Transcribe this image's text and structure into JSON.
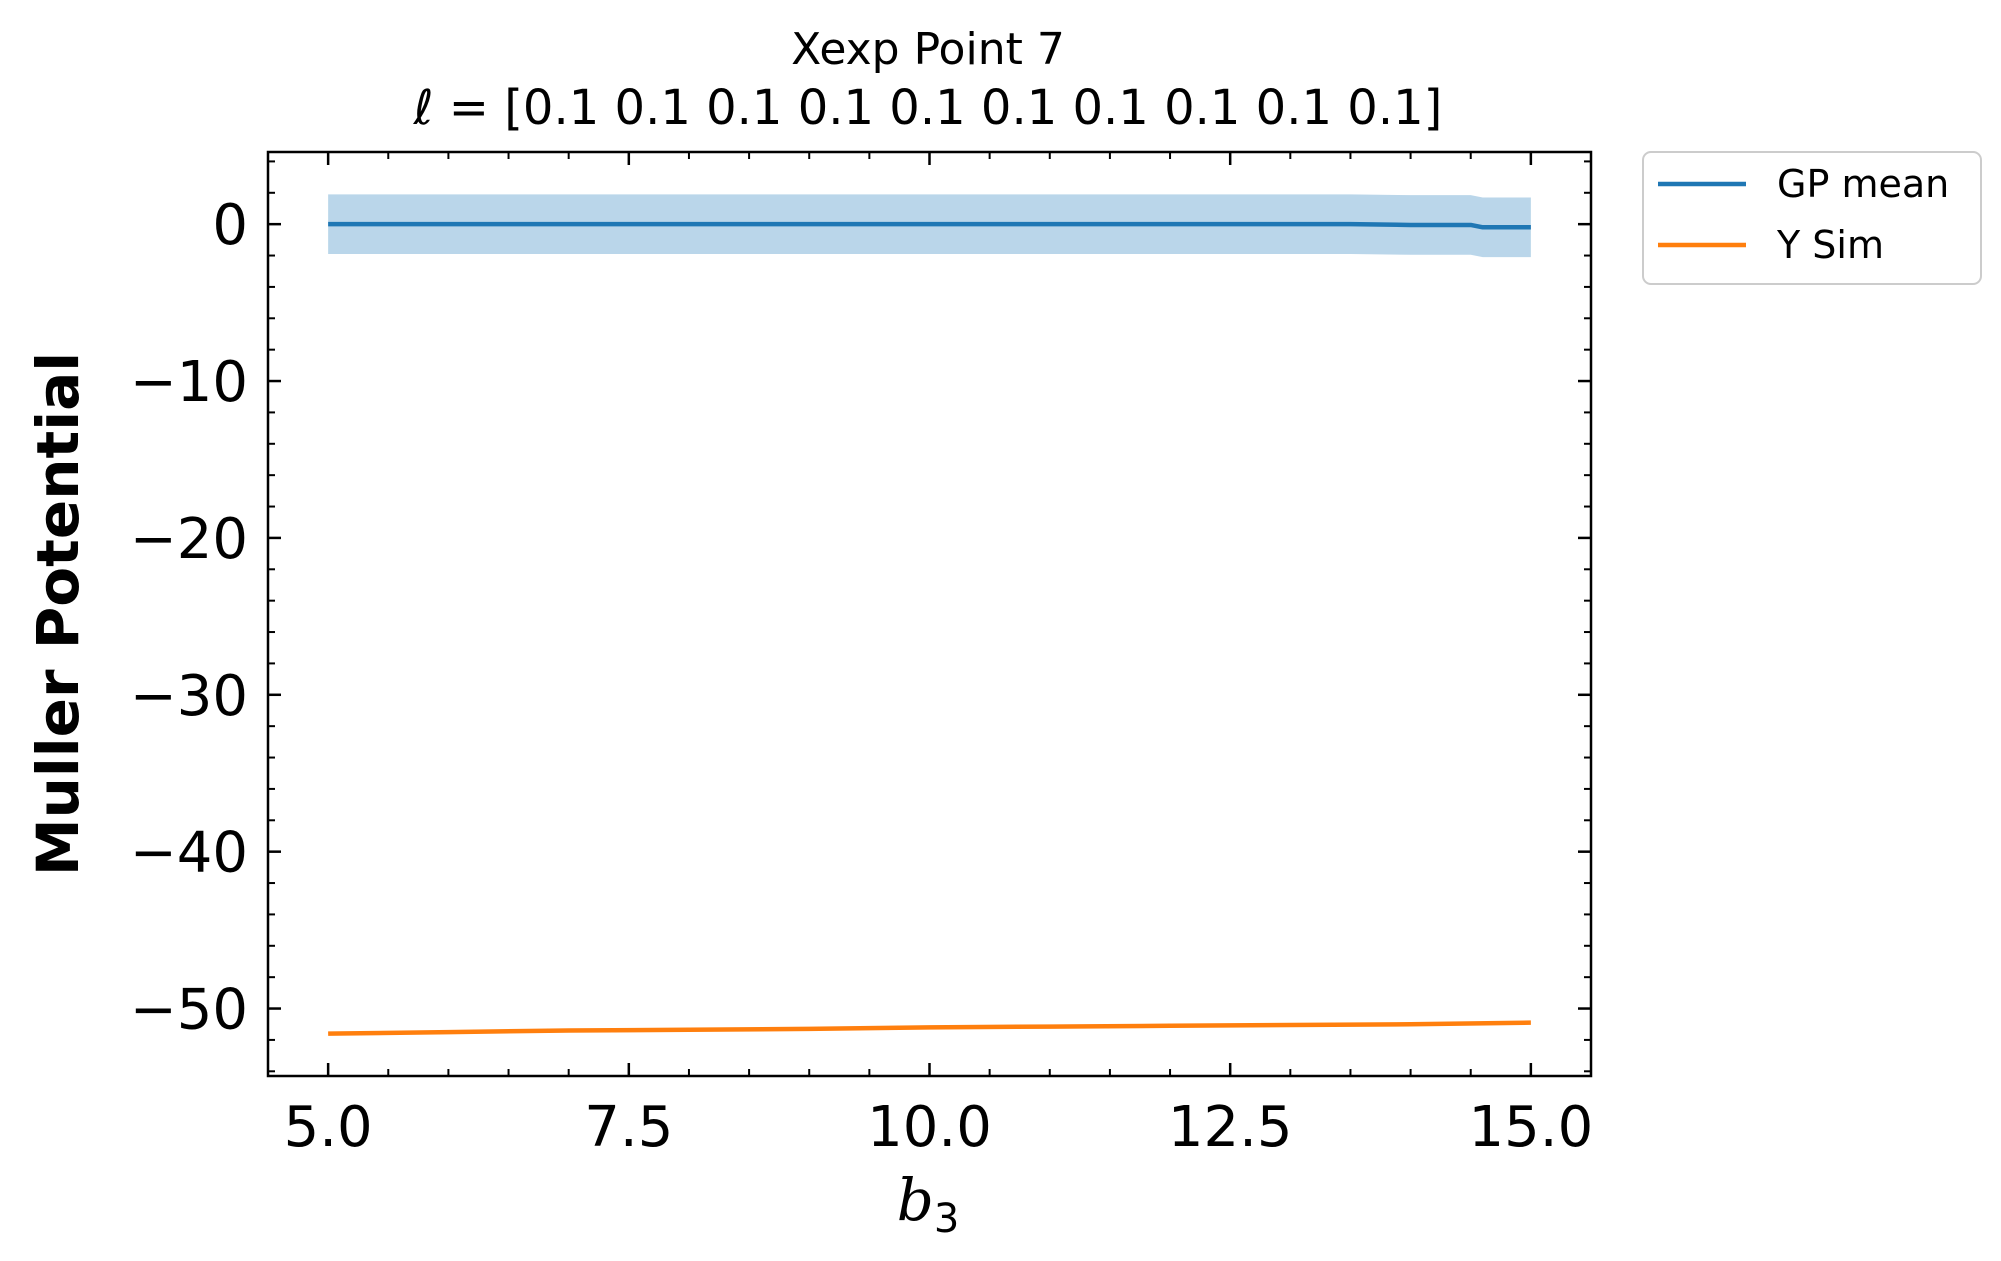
{
  "chart_data": {
    "type": "line",
    "title": "Xexp Point 7",
    "subtitle": "ℓ = [0.1 0.1 0.1 0.1 0.1 0.1 0.1 0.1 0.1 0.1]",
    "xlabel_base": "b",
    "xlabel_sub": "3",
    "ylabel": "Muller Potential",
    "xlim": [
      4.5,
      15.5
    ],
    "ylim": [
      -54.3,
      4.6
    ],
    "xticks": [
      5.0,
      7.5,
      10.0,
      12.5,
      15.0
    ],
    "xtick_labels": [
      "5.0",
      "7.5",
      "10.0",
      "12.5",
      "15.0"
    ],
    "yticks": [
      0,
      -10,
      -20,
      -30,
      -40,
      -50
    ],
    "ytick_labels": [
      "0",
      "−10",
      "−20",
      "−30",
      "−40",
      "−50"
    ],
    "grid": false,
    "legend_placement": "outside top-right",
    "series": [
      {
        "name": "GP mean",
        "color": "#1f77b4",
        "x": [
          5.0,
          6.0,
          7.0,
          8.0,
          9.0,
          10.0,
          11.0,
          12.0,
          13.0,
          13.5,
          14.0,
          14.5,
          14.6,
          15.0
        ],
        "y": [
          0.0,
          0.0,
          0.0,
          0.0,
          0.0,
          0.0,
          0.0,
          0.0,
          0.0,
          0.0,
          -0.05,
          -0.05,
          -0.2,
          -0.2
        ],
        "band_lower": [
          -1.9,
          -1.9,
          -1.9,
          -1.9,
          -1.9,
          -1.9,
          -1.9,
          -1.9,
          -1.9,
          -1.9,
          -1.95,
          -1.95,
          -2.1,
          -2.1
        ],
        "band_upper": [
          1.9,
          1.9,
          1.9,
          1.9,
          1.9,
          1.9,
          1.9,
          1.9,
          1.9,
          1.9,
          1.85,
          1.85,
          1.7,
          1.7
        ],
        "band_color": "#bad6ea"
      },
      {
        "name": "Y Sim",
        "color": "#ff7f0e",
        "x": [
          5.0,
          6.0,
          7.0,
          8.0,
          9.0,
          10.0,
          11.0,
          12.0,
          13.0,
          14.0,
          15.0
        ],
        "y": [
          -51.6,
          -51.5,
          -51.4,
          -51.35,
          -51.3,
          -51.2,
          -51.15,
          -51.1,
          -51.05,
          -51.0,
          -50.9
        ]
      }
    ]
  }
}
